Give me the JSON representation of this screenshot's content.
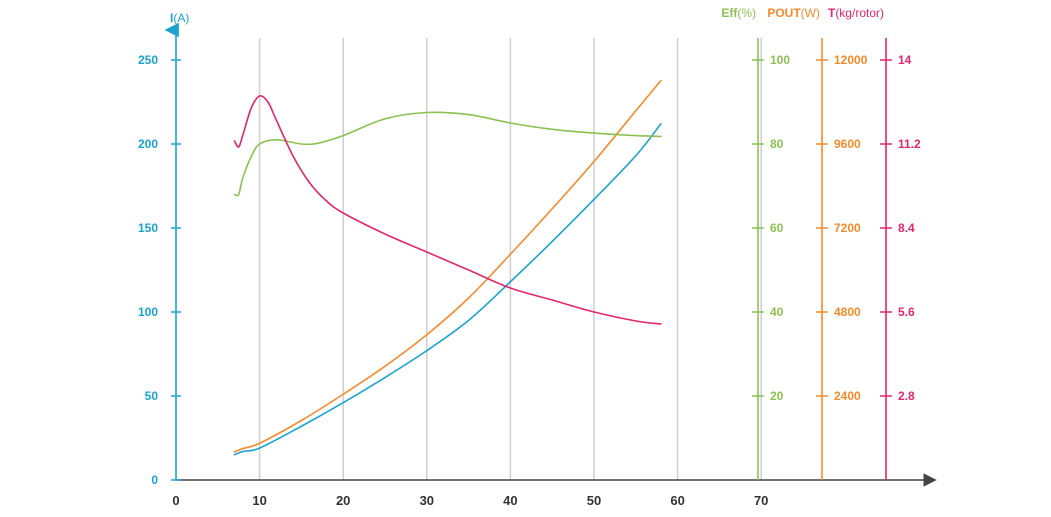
{
  "chart_data": {
    "type": "line",
    "title": "",
    "grid": true,
    "x_axis": {
      "label": "",
      "min": 0,
      "max": 80,
      "ticks": [
        0,
        10,
        20,
        30,
        40,
        50,
        60,
        70
      ],
      "tick_labels": [
        "0",
        "10",
        "20",
        "30",
        "40",
        "50",
        "60",
        "70"
      ]
    },
    "y_axes": [
      {
        "id": "current",
        "label_bold": "I",
        "label_unit": "(A)",
        "color": "#1aa3d1",
        "min": 0,
        "max": 250,
        "ticks": [
          0,
          50,
          100,
          150,
          200,
          250
        ],
        "tick_labels": [
          "0",
          "50",
          "100",
          "150",
          "200",
          "250"
        ]
      },
      {
        "id": "efficiency",
        "label_bold": "Eff",
        "label_unit": "(%)",
        "color": "#8cc152",
        "min": 0,
        "max": 100,
        "ticks": [
          20,
          40,
          60,
          80,
          100
        ],
        "tick_labels": [
          "20",
          "40",
          "60",
          "80",
          "100"
        ]
      },
      {
        "id": "power",
        "label_bold": "POUT",
        "label_unit": "(W)",
        "color": "#f58a2c",
        "min": 0,
        "max": 12000,
        "ticks": [
          2400,
          4800,
          7200,
          9600,
          12000
        ],
        "tick_labels": [
          "2400",
          "4800",
          "7200",
          "9600",
          "12000"
        ]
      },
      {
        "id": "thrust",
        "label_bold": "T",
        "label_unit": "(kg/rotor)",
        "color": "#e0276f",
        "min": 0,
        "max": 14,
        "ticks": [
          2.8,
          5.6,
          8.4,
          11.2,
          14
        ],
        "tick_labels": [
          "2.8",
          "5.6",
          "8.4",
          "11.2",
          "14"
        ]
      }
    ],
    "series": [
      {
        "axis": "current",
        "color": "#1aa3d1",
        "x": [
          7,
          8,
          10,
          15,
          20,
          25,
          30,
          35,
          40,
          45,
          50,
          55,
          58
        ],
        "y": [
          15,
          17,
          19,
          32,
          46,
          61,
          77,
          95,
          118,
          142,
          167,
          193,
          212
        ]
      },
      {
        "axis": "power",
        "color": "#f58a2c",
        "x": [
          7,
          8,
          10,
          15,
          20,
          25,
          30,
          35,
          40,
          45,
          50,
          55,
          58
        ],
        "y": [
          800,
          900,
          1050,
          1700,
          2450,
          3250,
          4150,
          5200,
          6450,
          7750,
          9100,
          10550,
          11410
        ]
      },
      {
        "axis": "efficiency",
        "color": "#8cc152",
        "x": [
          7,
          7.5,
          8,
          9,
          10,
          12,
          15,
          17,
          20,
          25,
          30,
          35,
          40,
          45,
          50,
          55,
          58
        ],
        "y": [
          68,
          68,
          72,
          77,
          80,
          81,
          80,
          80.2,
          82,
          86,
          87.5,
          87,
          85,
          83.5,
          82.6,
          82,
          81.8
        ]
      },
      {
        "axis": "thrust",
        "color": "#e0276f",
        "x": [
          7,
          7.5,
          8,
          9,
          10,
          11,
          12,
          14,
          16,
          18,
          20,
          25,
          30,
          35,
          40,
          45,
          50,
          55,
          58
        ],
        "y": [
          11.3,
          11.1,
          11.5,
          12.4,
          12.8,
          12.6,
          12.0,
          10.8,
          9.9,
          9.3,
          8.9,
          8.2,
          7.6,
          7.0,
          6.4,
          6.0,
          5.6,
          5.3,
          5.2
        ]
      }
    ]
  }
}
